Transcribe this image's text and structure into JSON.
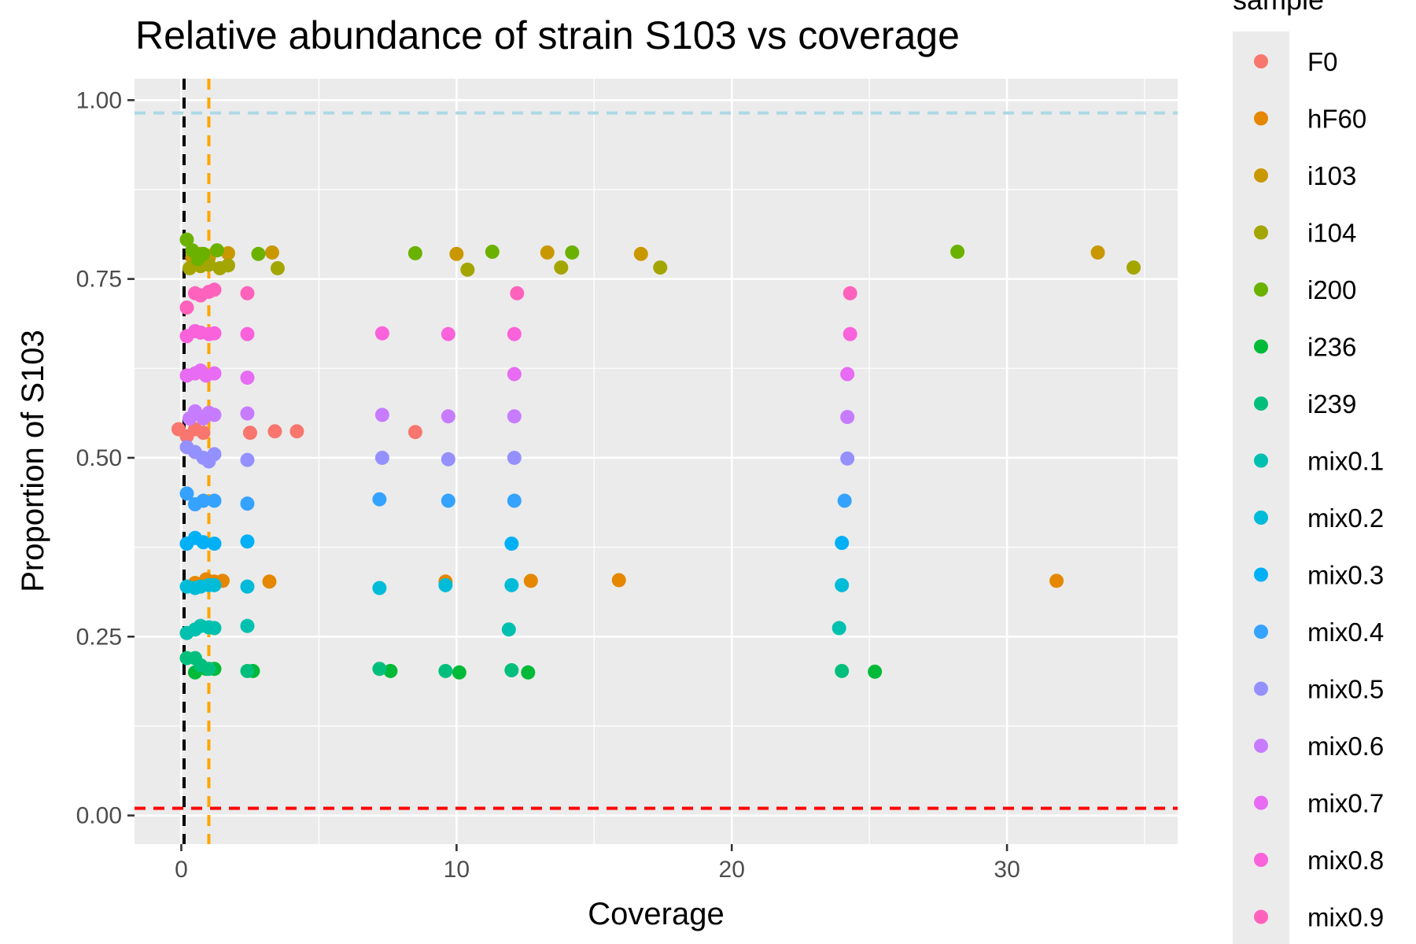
{
  "chart_data": {
    "type": "scatter",
    "title": "Relative abundance of strain S103 vs coverage",
    "xlabel": "Coverage",
    "ylabel": "Proportion of S103",
    "xlim": [
      -1.7,
      36.2
    ],
    "ylim": [
      -0.04,
      1.03
    ],
    "x_ticks": [
      0,
      10,
      20,
      30
    ],
    "x_tick_labels": [
      "0",
      "10",
      "20",
      "30"
    ],
    "y_ticks": [
      0,
      0.25,
      0.5,
      0.75,
      1
    ],
    "y_tick_labels": [
      "0.00",
      "0.25",
      "0.50",
      "0.75",
      "1.00"
    ],
    "grid": true,
    "legend_title": "sample",
    "legend_position": "right",
    "reference_lines": [
      {
        "orientation": "horizontal",
        "value": 0.982,
        "color": "#add8e6",
        "style": "dashed"
      },
      {
        "orientation": "horizontal",
        "value": 0.01,
        "color": "#ff0000",
        "style": "dashed"
      },
      {
        "orientation": "vertical",
        "value": 0.1,
        "color": "#000000",
        "style": "dashed"
      },
      {
        "orientation": "vertical",
        "value": 1.0,
        "color": "#ffa500",
        "style": "dashed"
      }
    ],
    "series": [
      {
        "name": "F0",
        "color": "#F8766D",
        "points": [
          [
            -0.1,
            0.54
          ],
          [
            0.2,
            0.53
          ],
          [
            0.5,
            0.54
          ],
          [
            0.8,
            0.535
          ],
          [
            2.5,
            0.535
          ],
          [
            3.4,
            0.537
          ],
          [
            4.2,
            0.537
          ],
          [
            8.5,
            0.536
          ]
        ]
      },
      {
        "name": "hF60",
        "color": "#E58700",
        "points": [
          [
            0.5,
            0.325
          ],
          [
            0.9,
            0.33
          ],
          [
            1.2,
            0.327
          ],
          [
            1.5,
            0.328
          ],
          [
            3.2,
            0.327
          ],
          [
            9.6,
            0.327
          ],
          [
            12.7,
            0.328
          ],
          [
            15.9,
            0.329
          ],
          [
            31.8,
            0.328
          ]
        ]
      },
      {
        "name": "i103",
        "color": "#C99800",
        "points": [
          [
            0.4,
            0.78
          ],
          [
            0.7,
            0.785
          ],
          [
            1.0,
            0.78
          ],
          [
            1.7,
            0.786
          ],
          [
            3.3,
            0.787
          ],
          [
            10.0,
            0.785
          ],
          [
            13.3,
            0.787
          ],
          [
            16.7,
            0.785
          ],
          [
            33.3,
            0.787
          ]
        ]
      },
      {
        "name": "i104",
        "color": "#A3A500",
        "points": [
          [
            0.3,
            0.765
          ],
          [
            0.7,
            0.768
          ],
          [
            1.0,
            0.77
          ],
          [
            1.4,
            0.765
          ],
          [
            1.7,
            0.769
          ],
          [
            3.5,
            0.765
          ],
          [
            10.4,
            0.763
          ],
          [
            13.8,
            0.766
          ],
          [
            17.4,
            0.766
          ],
          [
            34.6,
            0.766
          ]
        ]
      },
      {
        "name": "i200",
        "color": "#6BB100",
        "points": [
          [
            0.2,
            0.805
          ],
          [
            0.4,
            0.79
          ],
          [
            0.6,
            0.778
          ],
          [
            0.8,
            0.785
          ],
          [
            1.3,
            0.79
          ],
          [
            2.8,
            0.785
          ],
          [
            8.5,
            0.786
          ],
          [
            11.3,
            0.788
          ],
          [
            14.2,
            0.787
          ],
          [
            28.2,
            0.788
          ]
        ]
      },
      {
        "name": "i236",
        "color": "#00BA38",
        "points": [
          [
            0.5,
            0.2
          ],
          [
            0.9,
            0.205
          ],
          [
            1.2,
            0.205
          ],
          [
            2.6,
            0.202
          ],
          [
            7.6,
            0.202
          ],
          [
            10.1,
            0.2
          ],
          [
            12.6,
            0.2
          ],
          [
            25.2,
            0.201
          ]
        ]
      },
      {
        "name": "i239",
        "color": "#00BF7D",
        "points": [
          [
            0.2,
            0.22
          ],
          [
            0.5,
            0.22
          ],
          [
            0.7,
            0.21
          ],
          [
            1.0,
            0.205
          ],
          [
            2.4,
            0.202
          ],
          [
            7.2,
            0.205
          ],
          [
            9.6,
            0.202
          ],
          [
            12.0,
            0.203
          ],
          [
            24.0,
            0.202
          ]
        ]
      },
      {
        "name": "mix0.1",
        "color": "#00C0AF",
        "points": [
          [
            0.2,
            0.255
          ],
          [
            0.5,
            0.26
          ],
          [
            0.7,
            0.265
          ],
          [
            1.0,
            0.263
          ],
          [
            1.2,
            0.262
          ],
          [
            2.4,
            0.265
          ],
          [
            11.9,
            0.26
          ],
          [
            23.9,
            0.262
          ]
        ]
      },
      {
        "name": "mix0.2",
        "color": "#00BCD8",
        "points": [
          [
            0.2,
            0.32
          ],
          [
            0.5,
            0.318
          ],
          [
            0.7,
            0.32
          ],
          [
            1.0,
            0.322
          ],
          [
            1.2,
            0.322
          ],
          [
            2.4,
            0.32
          ],
          [
            7.2,
            0.318
          ],
          [
            9.6,
            0.322
          ],
          [
            12.0,
            0.322
          ],
          [
            24.0,
            0.322
          ]
        ]
      },
      {
        "name": "mix0.3",
        "color": "#00B0F6",
        "points": [
          [
            0.2,
            0.38
          ],
          [
            0.5,
            0.388
          ],
          [
            0.8,
            0.382
          ],
          [
            1.2,
            0.38
          ],
          [
            2.4,
            0.383
          ],
          [
            12.0,
            0.38
          ],
          [
            24.0,
            0.381
          ]
        ]
      },
      {
        "name": "mix0.4",
        "color": "#35A2FF",
        "points": [
          [
            0.2,
            0.45
          ],
          [
            0.5,
            0.435
          ],
          [
            0.8,
            0.44
          ],
          [
            1.2,
            0.44
          ],
          [
            2.4,
            0.436
          ],
          [
            7.2,
            0.442
          ],
          [
            9.7,
            0.44
          ],
          [
            12.1,
            0.44
          ],
          [
            24.1,
            0.44
          ]
        ]
      },
      {
        "name": "mix0.5",
        "color": "#9590FF",
        "points": [
          [
            0.2,
            0.515
          ],
          [
            0.5,
            0.508
          ],
          [
            0.8,
            0.5
          ],
          [
            1.0,
            0.495
          ],
          [
            1.2,
            0.505
          ],
          [
            2.4,
            0.497
          ],
          [
            7.3,
            0.5
          ],
          [
            9.7,
            0.498
          ],
          [
            12.1,
            0.5
          ],
          [
            24.2,
            0.499
          ]
        ]
      },
      {
        "name": "mix0.6",
        "color": "#C77CFF",
        "points": [
          [
            0.3,
            0.555
          ],
          [
            0.5,
            0.565
          ],
          [
            0.8,
            0.555
          ],
          [
            1.0,
            0.563
          ],
          [
            1.2,
            0.56
          ],
          [
            2.4,
            0.562
          ],
          [
            7.3,
            0.56
          ],
          [
            9.7,
            0.558
          ],
          [
            12.1,
            0.558
          ],
          [
            24.2,
            0.557
          ]
        ]
      },
      {
        "name": "mix0.7",
        "color": "#E76BF3",
        "points": [
          [
            0.2,
            0.615
          ],
          [
            0.5,
            0.618
          ],
          [
            0.7,
            0.622
          ],
          [
            0.9,
            0.615
          ],
          [
            1.2,
            0.618
          ],
          [
            2.4,
            0.612
          ],
          [
            12.1,
            0.617
          ],
          [
            24.2,
            0.617
          ]
        ]
      },
      {
        "name": "mix0.8",
        "color": "#FA62DB",
        "points": [
          [
            0.2,
            0.67
          ],
          [
            0.5,
            0.677
          ],
          [
            0.7,
            0.675
          ],
          [
            1.0,
            0.673
          ],
          [
            1.2,
            0.674
          ],
          [
            2.4,
            0.673
          ],
          [
            7.3,
            0.674
          ],
          [
            9.7,
            0.673
          ],
          [
            12.1,
            0.673
          ],
          [
            24.3,
            0.673
          ]
        ]
      },
      {
        "name": "mix0.9",
        "color": "#FF62BC",
        "points": [
          [
            0.2,
            0.71
          ],
          [
            0.5,
            0.73
          ],
          [
            0.7,
            0.727
          ],
          [
            1.0,
            0.732
          ],
          [
            1.2,
            0.735
          ],
          [
            2.4,
            0.73
          ],
          [
            12.2,
            0.73
          ],
          [
            24.3,
            0.73
          ]
        ]
      }
    ]
  }
}
